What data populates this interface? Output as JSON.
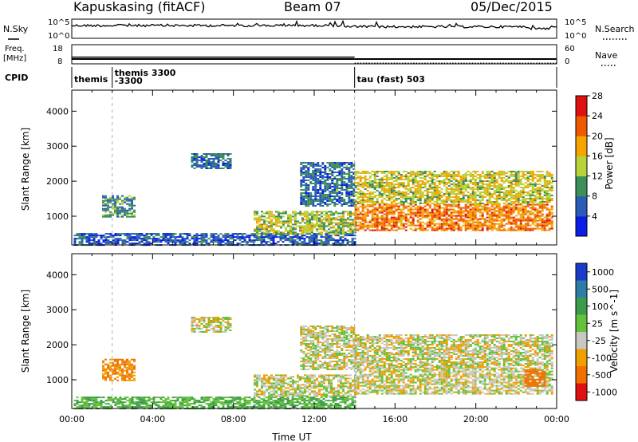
{
  "header": {
    "station": "Kapuskasing (fitACF)",
    "beam": "Beam 07",
    "date": "05/Dec/2015"
  },
  "noise_panel": {
    "left_label": "N.Sky",
    "right_label": "N.Search",
    "left_ticks": [
      "10^5",
      "10^0"
    ],
    "right_ticks": [
      "10^5",
      "10^0"
    ]
  },
  "freq_panel": {
    "left_label_1": "Freq.",
    "left_label_2": "[MHz]",
    "right_label": "Nave",
    "left_ticks": [
      "18",
      "8"
    ],
    "right_ticks": [
      "60",
      "0"
    ],
    "freq_segments": [
      {
        "start_hour": 0.0,
        "end_hour": 14.0,
        "freq_mhz": 10.5
      },
      {
        "start_hour": 14.0,
        "end_hour": 24.0,
        "freq_mhz": 10.5
      }
    ],
    "nave_segments": [
      {
        "start_hour": 0.0,
        "end_hour": 14.0,
        "nave": 21
      },
      {
        "start_hour": 14.0,
        "end_hour": 24.0,
        "nave": 2
      }
    ]
  },
  "cpid_panel": {
    "label": "CPID",
    "segments": [
      {
        "start_hour": 0.0,
        "label": "themis",
        "label2": ""
      },
      {
        "start_hour": 2.0,
        "label": "themis 3300",
        "label2": "-3300"
      },
      {
        "start_hour": 14.0,
        "label": "tau (fast) 503",
        "label2": ""
      }
    ]
  },
  "chart_data": [
    {
      "type": "heatmap",
      "title": "",
      "xlabel": "",
      "ylabel": "Slant Range [km]",
      "xlim": [
        0,
        24
      ],
      "ylim": [
        180,
        4600
      ],
      "yticks": [
        "1000",
        "2000",
        "3000",
        "4000"
      ],
      "colorbar_label": "Power [dB]",
      "colorbar_ticks": [
        "4",
        "8",
        "12",
        "16",
        "20",
        "24",
        "28"
      ],
      "colorbar_colors": [
        "#0a1ee6",
        "#2a5cb8",
        "#3d8f5a",
        "#b8d23a",
        "#f5a400",
        "#ef5a00",
        "#e01010"
      ],
      "dashed_lines_hours": [
        2.0,
        14.0
      ],
      "echo_regions": [
        {
          "t0": 0.1,
          "t1": 14.0,
          "r0": 180,
          "r1": 520,
          "value": 6
        },
        {
          "t0": 9.0,
          "t1": 14.0,
          "r0": 500,
          "r1": 1150,
          "value": 14
        },
        {
          "t0": 1.5,
          "t1": 3.1,
          "r0": 1000,
          "r1": 1600,
          "value": 10
        },
        {
          "t0": 5.9,
          "t1": 7.8,
          "r0": 2350,
          "r1": 2800,
          "value": 8
        },
        {
          "t0": 11.3,
          "t1": 14.0,
          "r0": 1300,
          "r1": 2550,
          "value": 8
        },
        {
          "t0": 14.0,
          "t1": 23.8,
          "r0": 600,
          "r1": 1350,
          "value": 22
        },
        {
          "t0": 14.0,
          "t1": 23.8,
          "r0": 1350,
          "r1": 2300,
          "value": 16
        }
      ]
    },
    {
      "type": "heatmap",
      "title": "",
      "xlabel": "Time UT",
      "ylabel": "Slant Range [km]",
      "xlim": [
        0,
        24
      ],
      "ylim": [
        180,
        4600
      ],
      "yticks": [
        "1000",
        "2000",
        "3000",
        "4000"
      ],
      "xticks": [
        "00:00",
        "04:00",
        "08:00",
        "12:00",
        "16:00",
        "20:00",
        "00:00"
      ],
      "colorbar_label": "Velocity [m s^-1]",
      "colorbar_ticks": [
        "1000",
        "500",
        "100",
        "25",
        "-25",
        "-100",
        "-500",
        "-1000"
      ],
      "colorbar_colors": [
        "#1a3cc8",
        "#2d7da6",
        "#3d9b4c",
        "#63c23a",
        "#c8c8c0",
        "#f0a000",
        "#f07000",
        "#e01010"
      ],
      "dashed_lines_hours": [
        2.0,
        14.0
      ],
      "echo_regions": [
        {
          "t0": 0.1,
          "t1": 14.0,
          "r0": 180,
          "r1": 520,
          "value": 100
        },
        {
          "t0": 9.0,
          "t1": 14.0,
          "r0": 550,
          "r1": 1150,
          "value": 0
        },
        {
          "t0": 14.0,
          "t1": 23.8,
          "r0": 600,
          "r1": 1350,
          "value": 0
        },
        {
          "t0": 14.0,
          "t1": 23.8,
          "r0": 1350,
          "r1": 2300,
          "value": 0
        },
        {
          "t0": 1.5,
          "t1": 3.1,
          "r0": 1000,
          "r1": 1600,
          "value": -100
        },
        {
          "t0": 5.9,
          "t1": 7.8,
          "r0": 2350,
          "r1": 2800,
          "value": 0
        },
        {
          "t0": 11.3,
          "t1": 14.0,
          "r0": 1300,
          "r1": 2550,
          "value": 0
        },
        {
          "t0": 22.4,
          "t1": 23.4,
          "r0": 800,
          "r1": 1300,
          "value": -300
        }
      ]
    }
  ]
}
